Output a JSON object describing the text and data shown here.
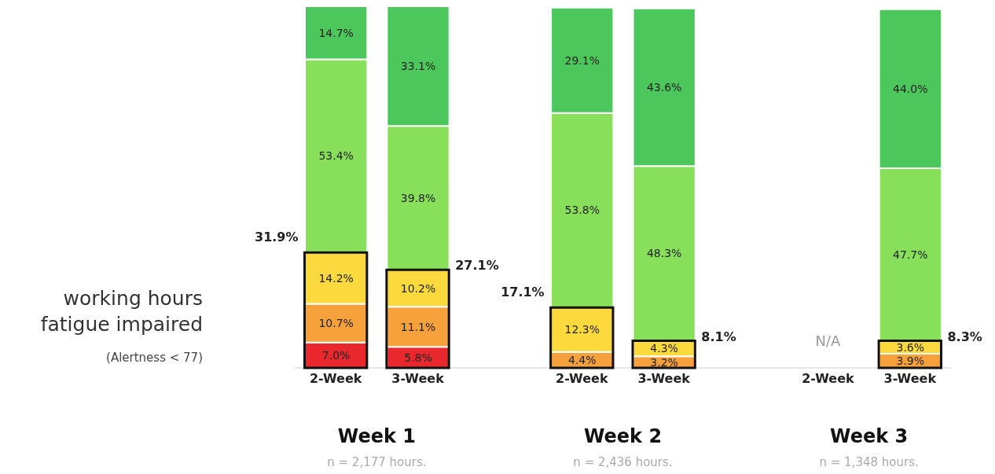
{
  "chart_data": {
    "type": "bar",
    "stacked": true,
    "categories": [
      "2-Week",
      "3-Week",
      null,
      "2-Week",
      "3-Week",
      null,
      "2-Week",
      "3-Week"
    ],
    "series": [
      {
        "color": "#e8282c",
        "values": [
          7.0,
          5.8,
          null,
          null,
          null,
          null,
          null,
          null
        ],
        "value_labels": [
          "7.0%",
          "5.8%",
          null,
          null,
          null,
          null,
          null,
          null
        ]
      },
      {
        "color": "#f7a13c",
        "values": [
          10.7,
          11.1,
          null,
          4.4,
          3.2,
          null,
          null,
          3.9
        ],
        "value_labels": [
          "10.7%",
          "11.1%",
          null,
          "4.4%",
          "3.2%",
          null,
          null,
          "3.9%"
        ]
      },
      {
        "color": "#fcd93c",
        "values": [
          14.2,
          10.2,
          null,
          12.3,
          4.3,
          null,
          null,
          3.6
        ],
        "value_labels": [
          "14.2%",
          "10.2%",
          null,
          "12.3%",
          "4.3%",
          null,
          null,
          "3.6%"
        ]
      },
      {
        "color": "#88e05a",
        "values": [
          53.4,
          39.8,
          null,
          53.8,
          48.3,
          null,
          null,
          47.7
        ],
        "value_labels": [
          "53.4%",
          "39.8%",
          null,
          "53.8%",
          "48.3%",
          null,
          null,
          "47.7%"
        ]
      },
      {
        "color": "#4cc75c",
        "values": [
          14.7,
          33.1,
          null,
          29.1,
          43.6,
          null,
          null,
          44.0
        ],
        "value_labels": [
          "14.7%",
          "33.1%",
          null,
          "29.1%",
          "43.6%",
          null,
          null,
          "44.0%"
        ]
      }
    ],
    "ylim": [
      0,
      100
    ],
    "tick_labels": "x",
    "ylabel": "working hours fatigue impaired",
    "annotations": [
      "(Alertness < 77)",
      "Week 1",
      "n = 2,177 hours.",
      "Week 2",
      "n = 2,436 hours.",
      "Week 3",
      "n = 1,348 hours.",
      "N/A",
      "31.9%",
      "27.1%",
      "17.1%",
      "8.1%",
      "8.3%"
    ]
  }
}
